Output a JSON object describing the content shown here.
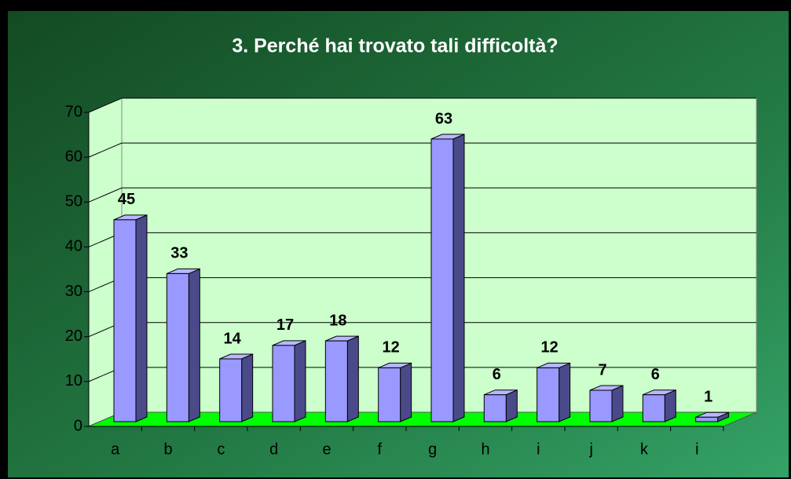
{
  "chart_data": {
    "type": "bar",
    "title": "3. Perché hai trovato tali difficoltà?",
    "categories": [
      "a",
      "b",
      "c",
      "d",
      "e",
      "f",
      "g",
      "h",
      "i",
      "j",
      "k",
      "i"
    ],
    "values": [
      45,
      33,
      14,
      17,
      18,
      12,
      63,
      6,
      12,
      7,
      6,
      1
    ],
    "color": "#9999ff",
    "ylim": [
      0,
      70
    ],
    "yticks": [
      0,
      10,
      20,
      30,
      40,
      50,
      60,
      70
    ],
    "grid": true
  }
}
